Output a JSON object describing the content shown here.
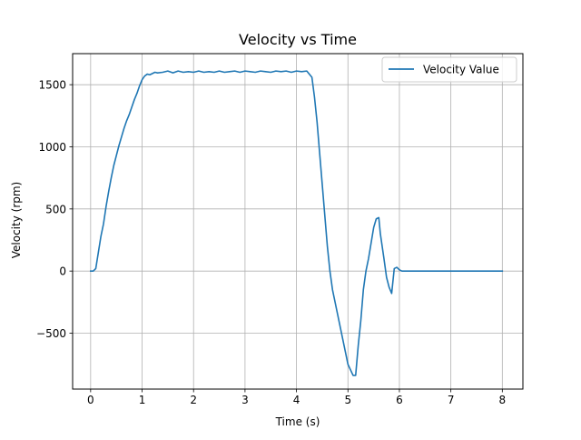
{
  "chart_data": {
    "type": "line",
    "title": "Velocity vs Time",
    "xlabel": "Time (s)",
    "ylabel": "Velocity (rpm)",
    "xlim": [
      -0.35,
      8.4
    ],
    "ylim": [
      -950,
      1750
    ],
    "xticks": [
      0,
      1,
      2,
      3,
      4,
      5,
      6,
      7,
      8
    ],
    "xtick_labels": [
      "0",
      "1",
      "2",
      "3",
      "4",
      "5",
      "6",
      "7",
      "8"
    ],
    "yticks": [
      -500,
      0,
      500,
      1000,
      1500
    ],
    "ytick_labels": [
      "−500",
      "0",
      "500",
      "1000",
      "1500"
    ],
    "grid": true,
    "legend_position": "top-right",
    "series": [
      {
        "name": "Velocity Value",
        "color": "#1f77b4",
        "x": [
          0.0,
          0.05,
          0.1,
          0.15,
          0.2,
          0.25,
          0.3,
          0.35,
          0.4,
          0.45,
          0.5,
          0.55,
          0.6,
          0.65,
          0.7,
          0.75,
          0.8,
          0.85,
          0.9,
          0.95,
          1.0,
          1.05,
          1.1,
          1.15,
          1.2,
          1.25,
          1.3,
          1.4,
          1.5,
          1.6,
          1.7,
          1.8,
          1.9,
          2.0,
          2.1,
          2.2,
          2.3,
          2.4,
          2.5,
          2.6,
          2.7,
          2.8,
          2.9,
          3.0,
          3.1,
          3.2,
          3.3,
          3.4,
          3.5,
          3.6,
          3.7,
          3.8,
          3.9,
          4.0,
          4.1,
          4.2,
          4.3,
          4.35,
          4.4,
          4.45,
          4.5,
          4.55,
          4.6,
          4.65,
          4.7,
          4.8,
          4.9,
          5.0,
          5.1,
          5.15,
          5.2,
          5.25,
          5.3,
          5.35,
          5.4,
          5.5,
          5.55,
          5.6,
          5.63,
          5.7,
          5.75,
          5.8,
          5.85,
          5.9,
          5.95,
          6.0,
          6.05,
          6.1,
          6.2,
          6.5,
          7.0,
          7.5,
          8.0
        ],
        "y": [
          0,
          0,
          20,
          150,
          280,
          380,
          520,
          640,
          750,
          850,
          930,
          1010,
          1080,
          1150,
          1210,
          1260,
          1320,
          1380,
          1430,
          1490,
          1540,
          1570,
          1585,
          1580,
          1590,
          1600,
          1595,
          1600,
          1610,
          1595,
          1610,
          1600,
          1605,
          1600,
          1610,
          1600,
          1605,
          1600,
          1610,
          1600,
          1605,
          1610,
          1600,
          1610,
          1605,
          1600,
          1610,
          1605,
          1600,
          1610,
          1605,
          1610,
          1600,
          1610,
          1605,
          1610,
          1560,
          1400,
          1200,
          950,
          700,
          450,
          200,
          0,
          -150,
          -350,
          -550,
          -750,
          -840,
          -840,
          -600,
          -400,
          -150,
          0,
          100,
          350,
          420,
          430,
          300,
          100,
          -50,
          -130,
          -180,
          20,
          30,
          10,
          0,
          0,
          0,
          0,
          0,
          0,
          0
        ]
      }
    ]
  }
}
